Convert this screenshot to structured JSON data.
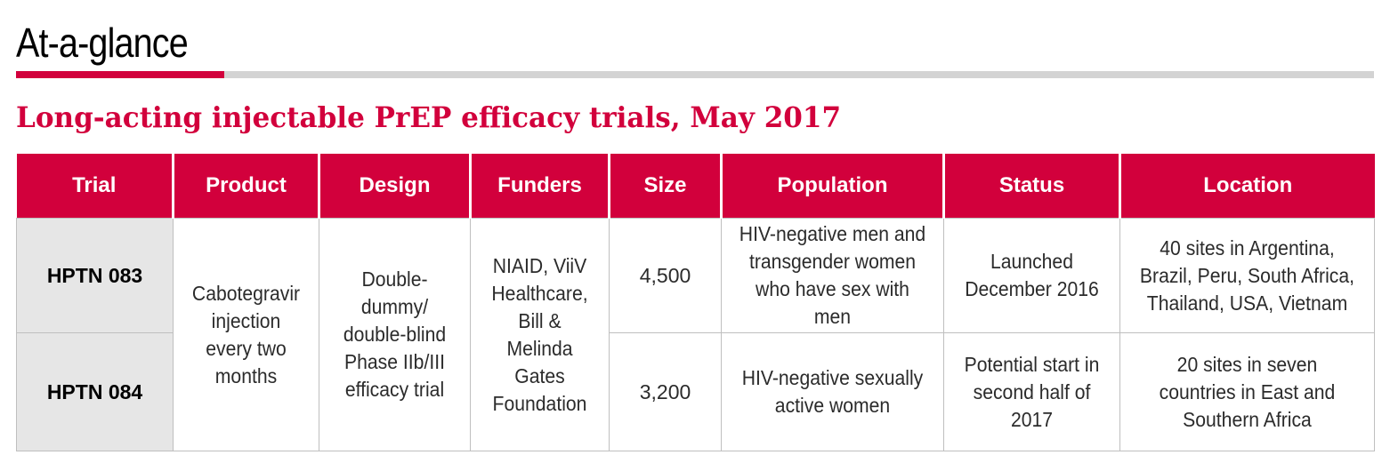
{
  "header": {
    "title": "At-a-glance"
  },
  "subtitle": "Long-acting injectable PrEP efficacy trials, May 2017",
  "colors": {
    "accent": "#d2003c",
    "rule_gray": "#d3d3d3",
    "trial_cell_bg": "#e6e6e6"
  },
  "table": {
    "columns": [
      "Trial",
      "Product",
      "Design",
      "Funders",
      "Size",
      "Population",
      "Status",
      "Location"
    ],
    "shared": {
      "product": "Cabotegravir injection every two months",
      "design": "Double-dummy/ double-blind Phase IIb/III efficacy trial",
      "funders": "NIAID, ViiV Healthcare, Bill & Melinda Gates Foundation"
    },
    "rows": [
      {
        "trial": "HPTN 083",
        "size": "4,500",
        "population": "HIV-negative men and transgender women who have sex with men",
        "status": "Launched December 2016",
        "location": "40 sites in Argentina, Brazil, Peru, South Africa, Thailand, USA, Vietnam"
      },
      {
        "trial": "HPTN 084",
        "size": "3,200",
        "population": "HIV-negative sexually active women",
        "status": "Potential start in second half of 2017",
        "location": "20 sites in seven countries in East and Southern Africa"
      }
    ]
  }
}
